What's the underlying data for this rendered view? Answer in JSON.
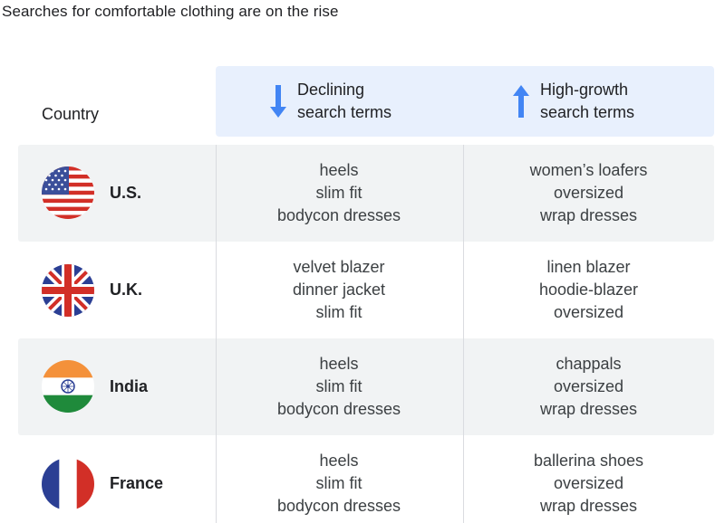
{
  "title": "Searches for comfortable clothing are on the rise",
  "header": {
    "country": "Country",
    "declining": {
      "line1": "Declining",
      "line2": "search terms",
      "icon": "arrow-down-icon"
    },
    "growth": {
      "line1": "High-growth",
      "line2": "search terms",
      "icon": "arrow-up-icon"
    }
  },
  "colors": {
    "accent": "#4285f4",
    "header_band": "#e8f0fd",
    "row_shade": "#f1f3f4"
  },
  "rows": [
    {
      "country": "U.S.",
      "flag": "us-flag-icon",
      "declining": [
        "heels",
        "slim fit",
        "bodycon dresses"
      ],
      "growth": [
        "women’s loafers",
        "oversized",
        "wrap dresses"
      ]
    },
    {
      "country": "U.K.",
      "flag": "uk-flag-icon",
      "declining": [
        "velvet blazer",
        "dinner jacket",
        "slim fit"
      ],
      "growth": [
        "linen blazer",
        "hoodie-blazer",
        "oversized"
      ]
    },
    {
      "country": "India",
      "flag": "india-flag-icon",
      "declining": [
        "heels",
        "slim fit",
        "bodycon dresses"
      ],
      "growth": [
        "chappals",
        "oversized",
        "wrap dresses"
      ]
    },
    {
      "country": "France",
      "flag": "france-flag-icon",
      "declining": [
        "heels",
        "slim fit",
        "bodycon dresses"
      ],
      "growth": [
        "ballerina shoes",
        "oversized",
        "wrap dresses"
      ]
    }
  ]
}
